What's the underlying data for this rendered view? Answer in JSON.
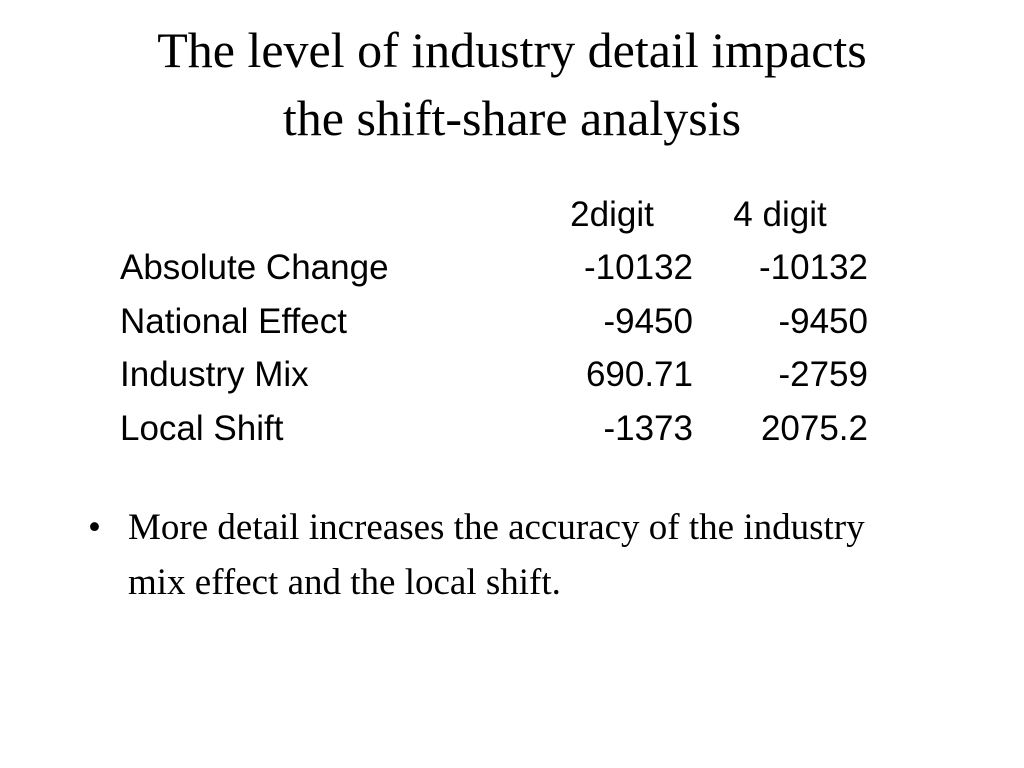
{
  "title": {
    "lines": [
      "The level of industry detail impacts",
      "the shift-share analysis"
    ]
  },
  "table": {
    "columns": [
      "2digit",
      "4 digit"
    ],
    "rows": [
      [
        "Absolute Change",
        "-10132",
        "-10132"
      ],
      [
        "National Effect",
        "-9450",
        "-9450"
      ],
      [
        "Industry Mix",
        "690.71",
        "-2759"
      ],
      [
        "Local Shift",
        "-1373",
        "2075.2"
      ]
    ]
  },
  "bullets": [
    "More detail increases the accuracy of the industry mix effect and the local shift."
  ]
}
